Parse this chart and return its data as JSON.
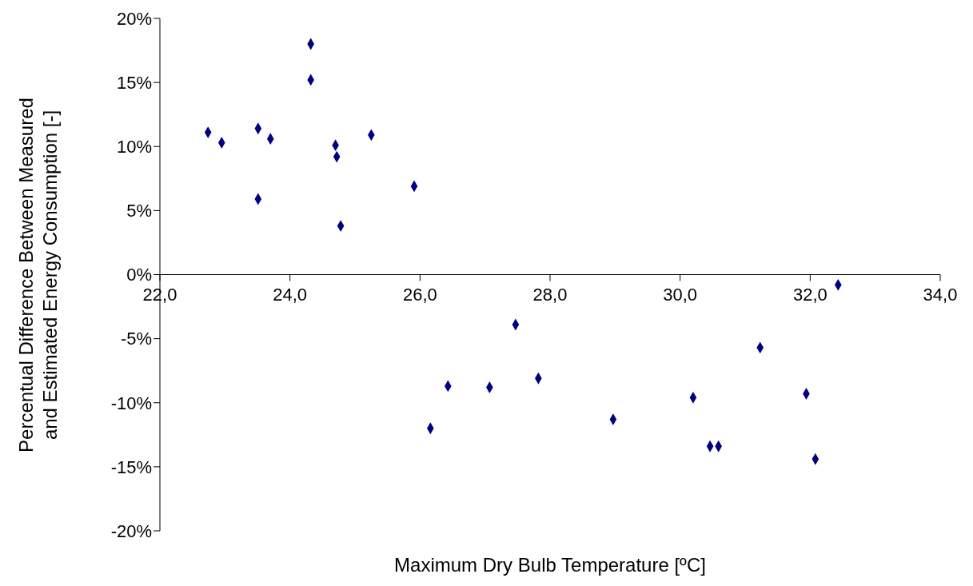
{
  "chart_data": {
    "type": "scatter",
    "xlabel": "Maximum Dry Bulb Temperature [ºC]",
    "ylabel": "Percentual Difference Between Measured\nand Estimated Energy Consumption [-]",
    "x": [
      22.74,
      22.95,
      23.51,
      23.51,
      23.7,
      24.32,
      24.32,
      24.7,
      24.72,
      24.78,
      25.25,
      25.91,
      26.16,
      26.43,
      27.07,
      27.47,
      27.82,
      28.97,
      30.2,
      30.46,
      30.59,
      31.23,
      31.94,
      32.08,
      32.43
    ],
    "series": [
      {
        "color": "#000080",
        "values": [
          11.1,
          10.3,
          11.4,
          5.9,
          10.6,
          18.0,
          15.2,
          10.1,
          9.2,
          3.8,
          10.9,
          6.9,
          -12.0,
          -8.7,
          -8.8,
          -3.9,
          -8.1,
          -11.3,
          -9.6,
          -13.4,
          -13.4,
          -5.7,
          -9.3,
          -14.4,
          -0.8
        ]
      }
    ],
    "marker": "diamond",
    "xlim": [
      22,
      34
    ],
    "xticks": [
      {
        "value": 22,
        "label": "22,0"
      },
      {
        "value": 24,
        "label": "24,0"
      },
      {
        "value": 26,
        "label": "26,0"
      },
      {
        "value": 28,
        "label": "28,0"
      },
      {
        "value": 30,
        "label": "30,0"
      },
      {
        "value": 32,
        "label": "32,0"
      },
      {
        "value": 34,
        "label": "34,0"
      }
    ],
    "ylim": [
      -20,
      20
    ],
    "yticks": [
      {
        "value": -20,
        "label": "-20%"
      },
      {
        "value": -15,
        "label": "-15%"
      },
      {
        "value": -10,
        "label": "-10%"
      },
      {
        "value": -5,
        "label": "-5%"
      },
      {
        "value": 0,
        "label": "0%"
      },
      {
        "value": 5,
        "label": "5%"
      },
      {
        "value": 10,
        "label": "10%"
      },
      {
        "value": 15,
        "label": "15%"
      },
      {
        "value": 20,
        "label": "20%"
      }
    ],
    "grid": false,
    "legend": false
  }
}
